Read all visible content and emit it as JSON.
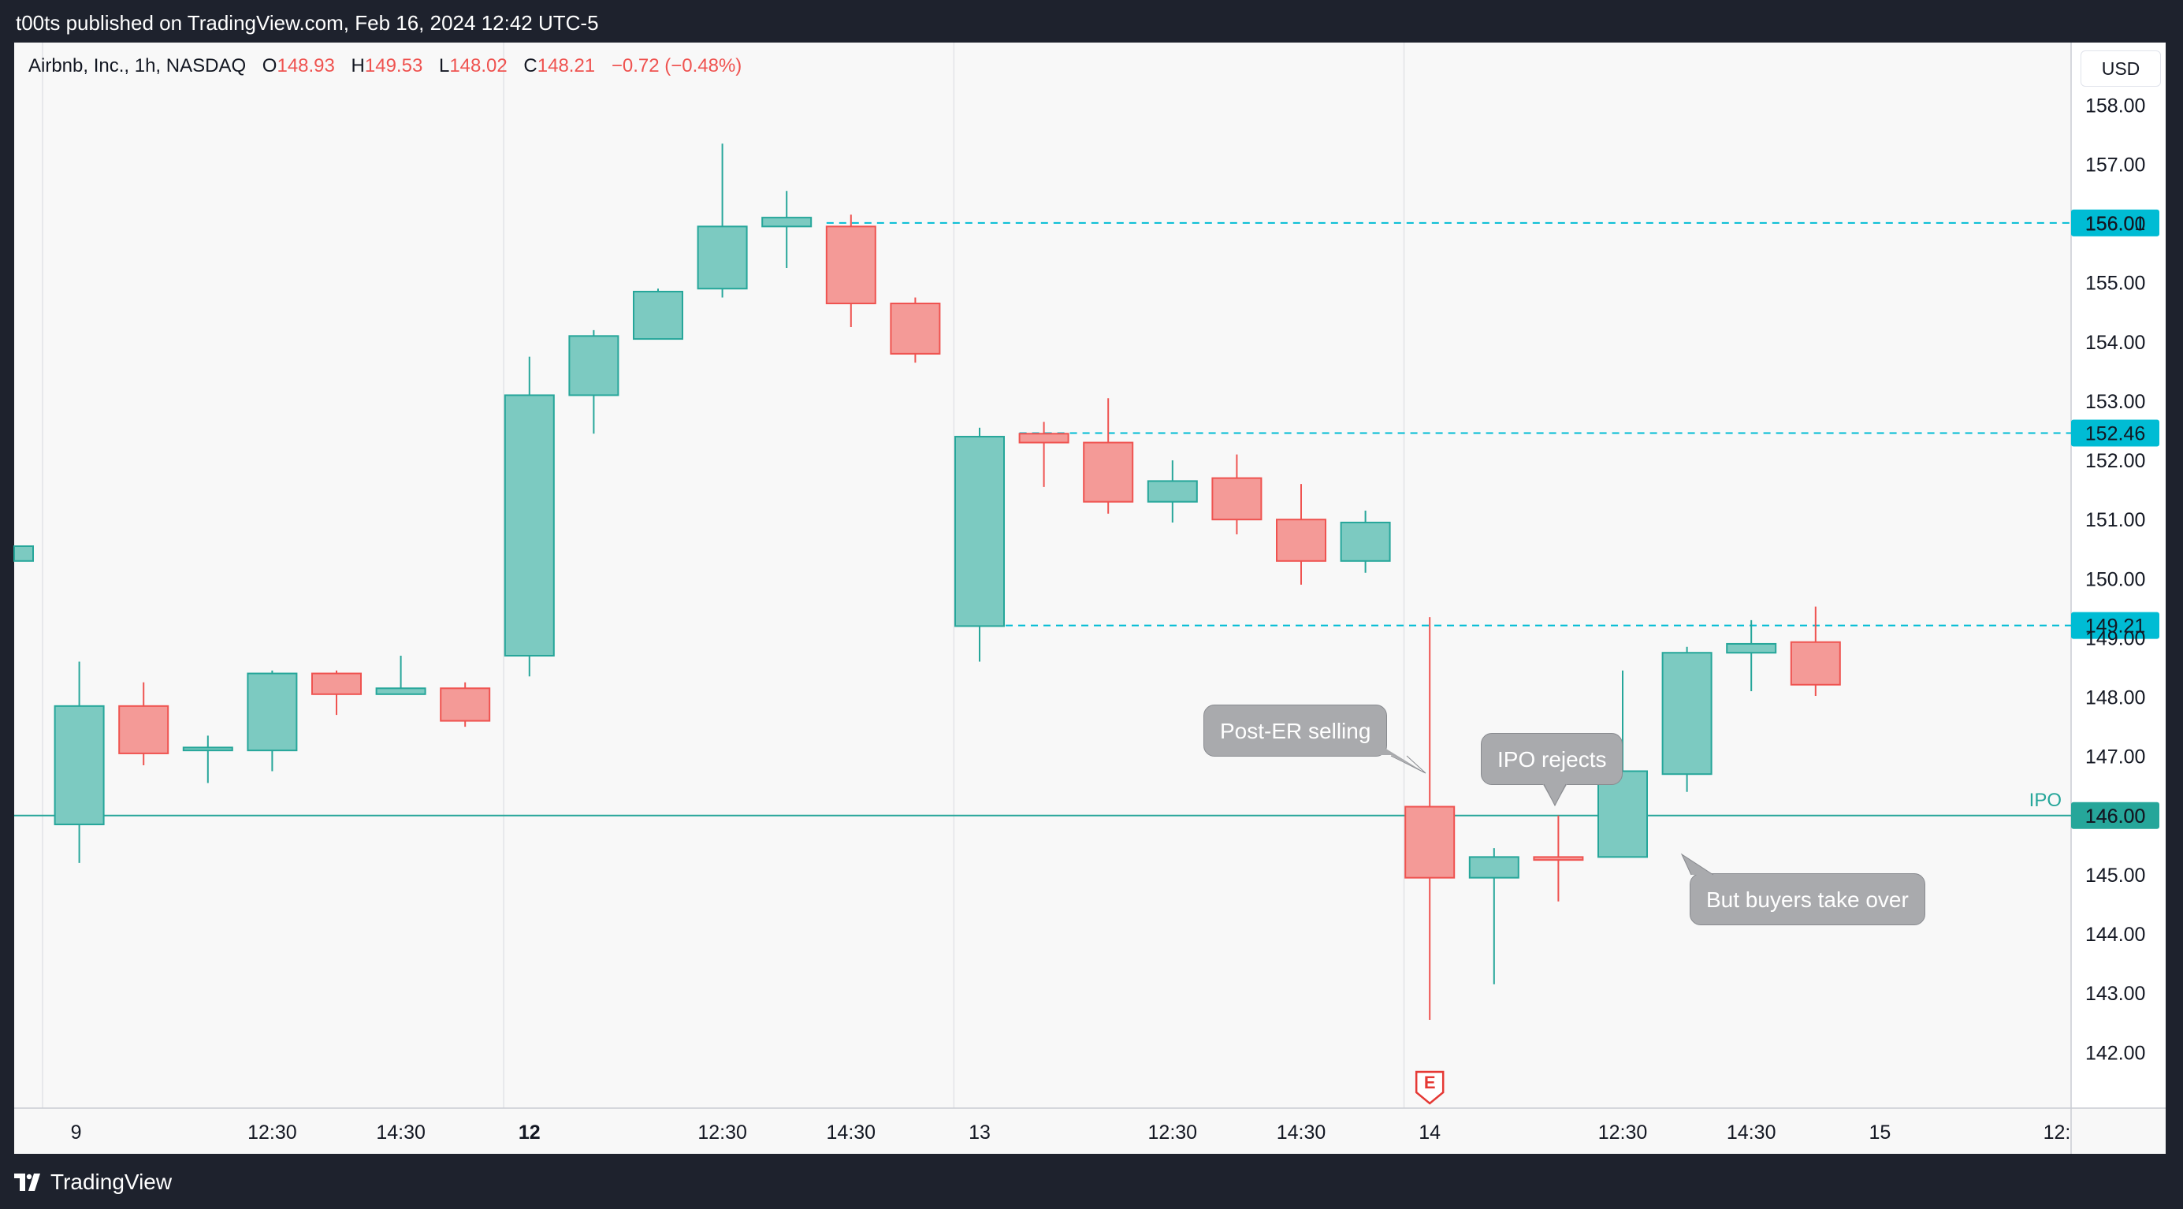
{
  "header": {
    "publisher_line": "t00ts published on TradingView.com, Feb 16, 2024 12:42 UTC-5"
  },
  "legend": {
    "symbol": "Airbnb, Inc., 1h, NASDAQ",
    "open_label": "O",
    "open_value": "148.93",
    "high_label": "H",
    "high_value": "149.53",
    "low_label": "L",
    "low_value": "148.02",
    "close_label": "C",
    "close_value": "148.21",
    "change": "−0.72 (−0.48%)"
  },
  "currency_button": "USD",
  "footer": {
    "brand": "TradingView"
  },
  "annotations": [
    {
      "text": "Post-ER selling"
    },
    {
      "text": "IPO rejects"
    },
    {
      "text": "But buyers take over"
    }
  ],
  "colors": {
    "up": "#26a69a",
    "up_fill": "#7ccac1",
    "down": "#ef5350",
    "down_fill": "#f49a97",
    "level": "#00bcd4",
    "ipo": "#26a69a",
    "earnings": "#e53935"
  },
  "chart_data": {
    "type": "candlestick",
    "title": "Airbnb, Inc., 1h, NASDAQ",
    "y_axis": {
      "min": 141.0,
      "max": 159.0,
      "ticks": [
        142,
        143,
        144,
        145,
        146,
        147,
        148,
        149,
        150,
        151,
        152,
        153,
        154,
        155,
        156,
        157,
        158
      ]
    },
    "x_axis_labels": [
      {
        "label": "9",
        "bar": 1,
        "bold": false
      },
      {
        "label": "12:30",
        "bar": 4,
        "bold": false
      },
      {
        "label": "14:30",
        "bar": 6,
        "bold": false
      },
      {
        "label": "12",
        "bar": 8,
        "bold": true
      },
      {
        "label": "12:30",
        "bar": 11,
        "bold": false
      },
      {
        "label": "14:30",
        "bar": 13,
        "bold": false
      },
      {
        "label": "13",
        "bar": 15,
        "bold": false
      },
      {
        "label": "12:30",
        "bar": 18,
        "bold": false
      },
      {
        "label": "14:30",
        "bar": 20,
        "bold": false
      },
      {
        "label": "14",
        "bar": 22,
        "bold": false
      },
      {
        "label": "12:30",
        "bar": 25,
        "bold": false
      },
      {
        "label": "14:30",
        "bar": 27,
        "bold": false
      },
      {
        "label": "15",
        "bar": 29,
        "bold": false
      },
      {
        "label": "12:",
        "bar": 32,
        "bold": false
      }
    ],
    "session_separators": [
      0.6,
      7.6,
      14.6,
      21.6
    ],
    "candles": [
      {
        "bar": 0,
        "o": 150.3,
        "h": 150.55,
        "l": 150.3,
        "c": 150.55
      },
      {
        "bar": 1,
        "o": 145.85,
        "h": 148.6,
        "l": 145.2,
        "c": 147.85
      },
      {
        "bar": 2,
        "o": 147.85,
        "h": 148.25,
        "l": 146.85,
        "c": 147.05
      },
      {
        "bar": 3,
        "o": 147.1,
        "h": 147.35,
        "l": 146.55,
        "c": 147.15
      },
      {
        "bar": 4,
        "o": 147.1,
        "h": 148.45,
        "l": 146.75,
        "c": 148.4
      },
      {
        "bar": 5,
        "o": 148.4,
        "h": 148.45,
        "l": 147.7,
        "c": 148.05
      },
      {
        "bar": 6,
        "o": 148.05,
        "h": 148.7,
        "l": 148.05,
        "c": 148.15
      },
      {
        "bar": 7,
        "o": 148.15,
        "h": 148.25,
        "l": 147.5,
        "c": 147.6
      },
      {
        "bar": 8,
        "o": 148.7,
        "h": 153.75,
        "l": 148.35,
        "c": 153.1
      },
      {
        "bar": 9,
        "o": 153.1,
        "h": 154.2,
        "l": 152.45,
        "c": 154.1
      },
      {
        "bar": 10,
        "o": 154.05,
        "h": 154.9,
        "l": 154.05,
        "c": 154.85
      },
      {
        "bar": 11,
        "o": 154.9,
        "h": 157.35,
        "l": 154.75,
        "c": 155.95
      },
      {
        "bar": 12,
        "o": 155.95,
        "h": 156.55,
        "l": 155.25,
        "c": 156.1
      },
      {
        "bar": 13,
        "o": 155.95,
        "h": 156.15,
        "l": 154.25,
        "c": 154.65
      },
      {
        "bar": 14,
        "o": 154.65,
        "h": 154.75,
        "l": 153.65,
        "c": 153.8
      },
      {
        "bar": 15,
        "o": 149.2,
        "h": 152.55,
        "l": 148.6,
        "c": 152.4
      },
      {
        "bar": 16,
        "o": 152.45,
        "h": 152.65,
        "l": 151.55,
        "c": 152.3
      },
      {
        "bar": 17,
        "o": 152.3,
        "h": 153.05,
        "l": 151.1,
        "c": 151.3
      },
      {
        "bar": 18,
        "o": 151.3,
        "h": 152.0,
        "l": 150.95,
        "c": 151.65
      },
      {
        "bar": 19,
        "o": 151.7,
        "h": 152.1,
        "l": 150.75,
        "c": 151.0
      },
      {
        "bar": 20,
        "o": 151.0,
        "h": 151.6,
        "l": 149.9,
        "c": 150.3
      },
      {
        "bar": 21,
        "o": 150.3,
        "h": 151.15,
        "l": 150.1,
        "c": 150.95
      },
      {
        "bar": 22,
        "o": 146.15,
        "h": 149.35,
        "l": 142.55,
        "c": 144.95
      },
      {
        "bar": 23,
        "o": 144.95,
        "h": 145.45,
        "l": 143.15,
        "c": 145.3
      },
      {
        "bar": 24,
        "o": 145.3,
        "h": 146.0,
        "l": 144.55,
        "c": 145.25
      },
      {
        "bar": 25,
        "o": 145.3,
        "h": 148.45,
        "l": 145.3,
        "c": 146.75
      },
      {
        "bar": 26,
        "o": 146.7,
        "h": 148.85,
        "l": 146.4,
        "c": 148.75
      },
      {
        "bar": 27,
        "o": 148.75,
        "h": 149.3,
        "l": 148.1,
        "c": 148.9
      },
      {
        "bar": 28,
        "o": 148.93,
        "h": 149.53,
        "l": 148.02,
        "c": 148.21
      }
    ],
    "horizontal_lines": [
      {
        "price": 156.01,
        "label": "156.01",
        "style": "dashed",
        "from_bar": 13
      },
      {
        "price": 152.46,
        "label": "152.46",
        "style": "dashed",
        "from_bar": 16
      },
      {
        "price": 149.21,
        "label": "149.21",
        "style": "dashed",
        "from_bar": 15
      },
      {
        "price": 146.0,
        "label": "146.00",
        "style": "solid",
        "from_bar": -1,
        "name": "IPO"
      }
    ],
    "earnings_marker": {
      "bar": 22,
      "label": "E"
    }
  }
}
